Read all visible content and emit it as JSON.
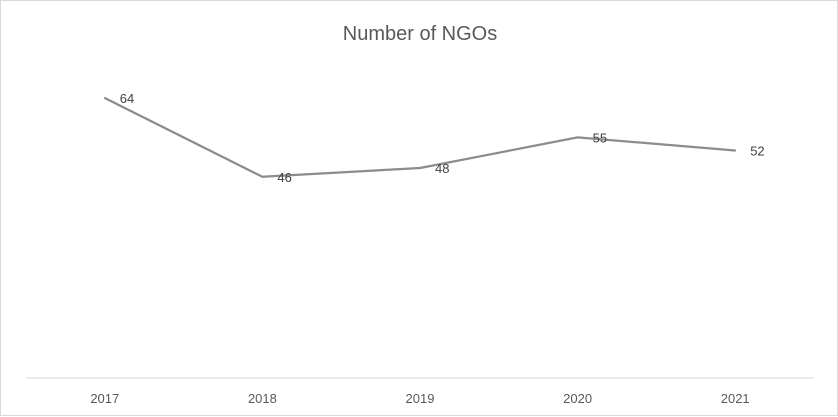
{
  "chart_data": {
    "type": "line",
    "title": "Number of NGOs",
    "xlabel": "",
    "ylabel": "",
    "categories": [
      "2017",
      "2018",
      "2019",
      "2020",
      "2021"
    ],
    "series": [
      {
        "values": [
          64,
          46,
          48,
          55,
          52
        ],
        "color": "#8c8c8c"
      }
    ],
    "data_labels": [
      "64",
      "46",
      "48",
      "55",
      "52"
    ],
    "ylim": [
      0,
      70
    ],
    "grid": false,
    "legend": "none",
    "axis_color": "#d9d9d9",
    "text_color": "#595959"
  }
}
